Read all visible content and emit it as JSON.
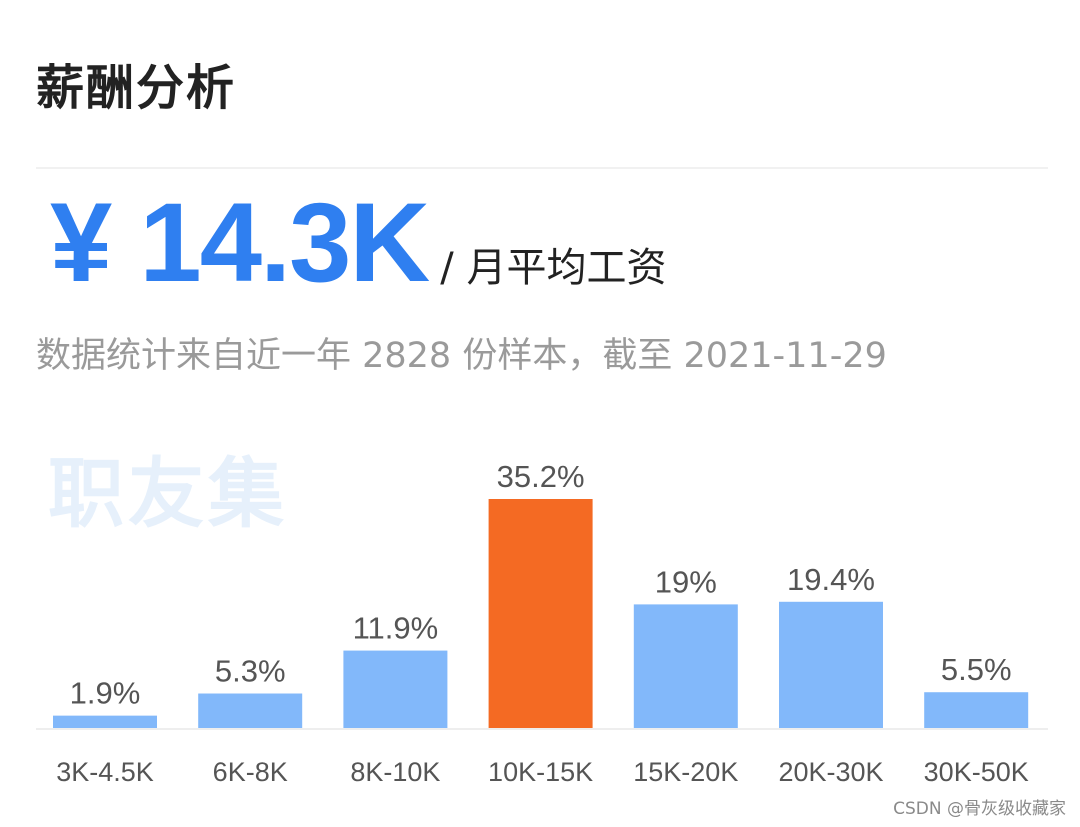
{
  "header": {
    "title": "薪酬分析"
  },
  "summary": {
    "salary": "¥ 14.3K",
    "unit": "/ 月平均工资",
    "note": "数据统计来自近一年 2828 份样本，截至 2021-11-29"
  },
  "watermark": "职友集",
  "credit": "CSDN @骨灰级收藏家",
  "colors": {
    "accent": "#2f7ff0",
    "bar": "#82b8fa",
    "highlight": "#f46a23",
    "axis": "#eeeeee",
    "label": "#555555",
    "tick": "#555555"
  },
  "chart_data": {
    "type": "bar",
    "categories": [
      "3K-4.5K",
      "6K-8K",
      "8K-10K",
      "10K-15K",
      "15K-20K",
      "20K-30K",
      "30K-50K"
    ],
    "values": [
      1.9,
      5.3,
      11.9,
      35.2,
      19,
      19.4,
      5.5
    ],
    "value_labels": [
      "1.9%",
      "5.3%",
      "11.9%",
      "35.2%",
      "19%",
      "19.4%",
      "5.5%"
    ],
    "highlight_category": "10K-15K",
    "unit": "%",
    "ylim": [
      0,
      35.2
    ],
    "grid": false,
    "legend": "none"
  }
}
